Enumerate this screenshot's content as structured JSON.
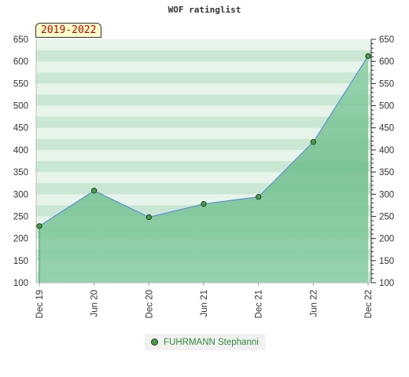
{
  "chart_data": {
    "type": "area",
    "title": "WOF ratinglist",
    "period_label": "2019-2022",
    "x": [
      "Dec 19",
      "Jun 20",
      "Dec 20",
      "Jun 21",
      "Dec 21",
      "Jun 22",
      "Dec 22"
    ],
    "series": [
      {
        "name": "FUHRMANN Stephanni",
        "values": [
          228,
          308,
          248,
          278,
          294,
          418,
          612
        ]
      }
    ],
    "yticks": [
      100,
      150,
      200,
      250,
      300,
      350,
      400,
      450,
      500,
      550,
      600,
      650
    ],
    "ylim": [
      100,
      650
    ],
    "grid": true,
    "legend": "bottom-center",
    "colors": {
      "fill": "#7cc497",
      "line": "#5b8fd9",
      "marker": "#4a9a4a",
      "band_light": "#e6f4ea",
      "band_dark": "#c9e7d2"
    }
  }
}
